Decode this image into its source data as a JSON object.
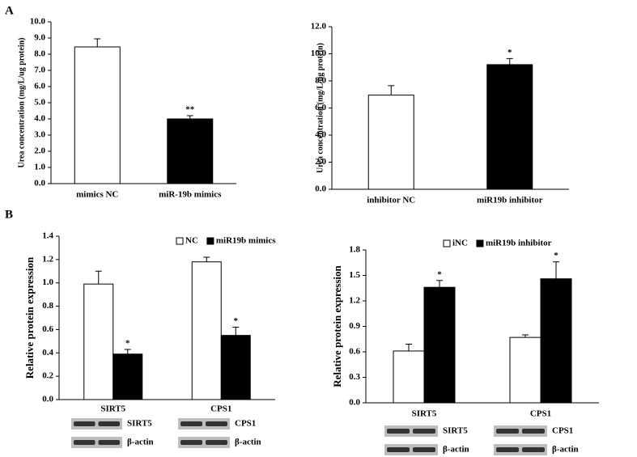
{
  "panel_labels": [
    "A",
    "B"
  ],
  "chart_data": [
    {
      "type": "bar",
      "ylabel": "Urea concentration (mg/L/ug protein)",
      "categories": [
        "mimics NC",
        "miR-19b mimics"
      ],
      "values": [
        8.45,
        4.0
      ],
      "errors": [
        0.5,
        0.2
      ],
      "colors": [
        "#ffffff",
        "#000000"
      ],
      "significance": [
        null,
        "**"
      ],
      "ylim": [
        0,
        10
      ],
      "yticks": [
        {
          "value": 0,
          "label": "0.0"
        },
        {
          "value": 1,
          "label": "1.0"
        },
        {
          "value": 2,
          "label": "2.0"
        },
        {
          "value": 3,
          "label": "3.0"
        },
        {
          "value": 4,
          "label": "4.0"
        },
        {
          "value": 5,
          "label": "5.0"
        },
        {
          "value": 6,
          "label": "6.0"
        },
        {
          "value": 7,
          "label": "7.0"
        },
        {
          "value": 8,
          "label": "8.0"
        },
        {
          "value": 9,
          "label": "9.0"
        },
        {
          "value": 10,
          "label": "10.0"
        }
      ]
    },
    {
      "type": "bar",
      "ylabel": "Urea concentration (mg/L/ug protein)",
      "categories": [
        "inhibitor NC",
        "miR19b inhibitor"
      ],
      "values": [
        6.95,
        9.2
      ],
      "errors": [
        0.7,
        0.45
      ],
      "colors": [
        "#ffffff",
        "#000000"
      ],
      "significance": [
        null,
        "*"
      ],
      "ylim": [
        0,
        12
      ],
      "yticks": [
        {
          "value": 0,
          "label": "0.0"
        },
        {
          "value": 2,
          "label": "2.0"
        },
        {
          "value": 4,
          "label": "4.0"
        },
        {
          "value": 6,
          "label": "6.0"
        },
        {
          "value": 8,
          "label": "8.0"
        },
        {
          "value": 10,
          "label": "10.0"
        },
        {
          "value": 12,
          "label": "12.0"
        }
      ]
    },
    {
      "type": "bar",
      "ylabel": "Relative protein expression",
      "categories": [
        "SIRT5",
        "CPS1"
      ],
      "series": [
        {
          "name": "NC",
          "color": "#ffffff",
          "values": [
            0.99,
            1.18
          ],
          "errors": [
            0.11,
            0.04
          ],
          "significance": [
            null,
            null
          ]
        },
        {
          "name": "miR19b mimics",
          "color": "#000000",
          "values": [
            0.39,
            0.55
          ],
          "errors": [
            0.04,
            0.07
          ],
          "significance": [
            "*",
            "*"
          ]
        }
      ],
      "ylim": [
        0,
        1.4
      ],
      "yticks": [
        {
          "value": 0,
          "label": "0.0"
        },
        0.2,
        0.4,
        0.6,
        0.8,
        {
          "value": 1,
          "label": "1.0"
        },
        1.2,
        1.4
      ],
      "blots": [
        [
          "SIRT5",
          "β-actin"
        ],
        [
          "CPS1",
          "β-actin"
        ]
      ]
    },
    {
      "type": "bar",
      "ylabel": "Relative protein expression",
      "categories": [
        "SIRT5",
        "CPS1"
      ],
      "series": [
        {
          "name": "iNC",
          "color": "#ffffff",
          "values": [
            0.61,
            0.77
          ],
          "errors": [
            0.08,
            0.03
          ],
          "significance": [
            null,
            null
          ]
        },
        {
          "name": "miR19b inhibitor",
          "color": "#000000",
          "values": [
            1.36,
            1.46
          ],
          "errors": [
            0.08,
            0.2
          ],
          "significance": [
            "*",
            "*"
          ]
        }
      ],
      "ylim": [
        0,
        1.8
      ],
      "yticks": [
        {
          "value": 0,
          "label": "0.0"
        },
        0.3,
        0.6,
        0.9,
        1.2,
        1.5,
        1.8
      ],
      "blots": [
        [
          "SIRT5",
          "β-actin"
        ],
        [
          "CPS1",
          "β-actin"
        ]
      ]
    }
  ]
}
